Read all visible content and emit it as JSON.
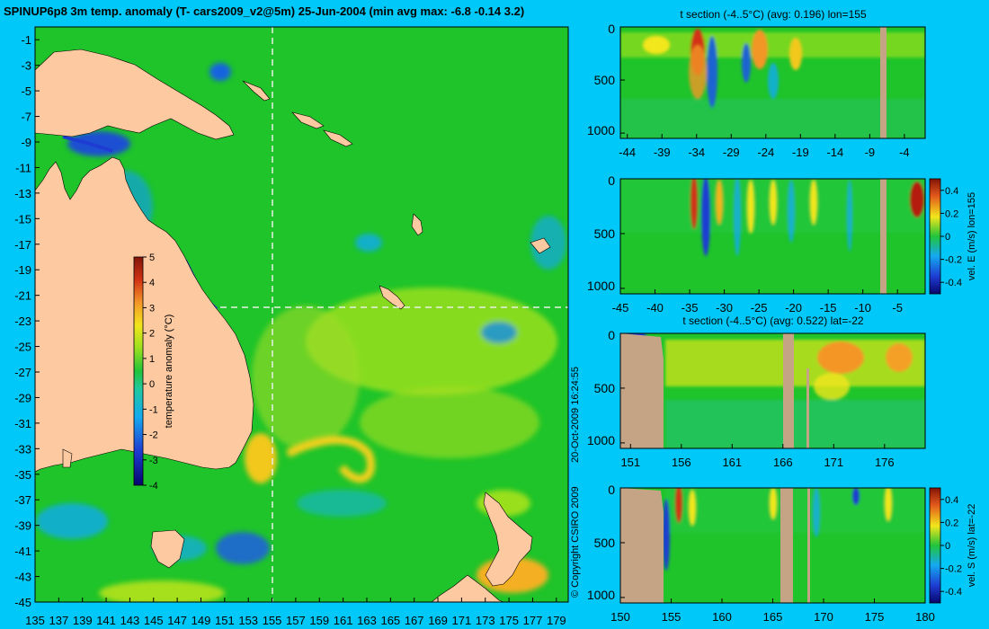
{
  "chart_data": [
    {
      "type": "heatmap",
      "id": "map",
      "title": "SPINUP6p8 3m temp. anomaly (T- cars2009_v2@5m) 25-Jun-2004 (min avg max: -6.8 -0.14 3.2)",
      "x_ticks": [
        "135",
        "137",
        "139",
        "141",
        "143",
        "145",
        "147",
        "149",
        "151",
        "153",
        "155",
        "157",
        "159",
        "161",
        "163",
        "165",
        "167",
        "169",
        "171",
        "173",
        "175",
        "177",
        "179"
      ],
      "xlim": [
        135,
        180
      ],
      "y_ticks": [
        "-1",
        "-3",
        "-5",
        "-7",
        "-9",
        "-11",
        "-13",
        "-15",
        "-17",
        "-19",
        "-21",
        "-23",
        "-25",
        "-27",
        "-29",
        "-31",
        "-33",
        "-35",
        "-37",
        "-39",
        "-41",
        "-43",
        "-45"
      ],
      "ylim": [
        -45,
        0
      ],
      "section_lon": 155,
      "section_lat": -22,
      "colorbar": {
        "label": "temperature anomaly (°C)",
        "ticks": [
          "5",
          "4",
          "3",
          "2",
          "1",
          "0",
          "-1",
          "-2",
          "-3",
          "-4"
        ],
        "range": [
          -4,
          5
        ]
      },
      "copyright": "© Copyright CSIRO 2009",
      "timestamp": "20-Oct-2009 16:24:55"
    },
    {
      "type": "heatmap",
      "id": "panel1",
      "title": "t section (-4..5°C) (avg: 0.196) lon=155",
      "x_ticks": [
        "-44",
        "-39",
        "-34",
        "-29",
        "-24",
        "-19",
        "-14",
        "-9",
        "-4"
      ],
      "xlim": [
        -45,
        -1
      ],
      "y_ticks": [
        "0",
        "500",
        "1000"
      ],
      "ylim": [
        0,
        1050
      ],
      "land": [
        [
          -6,
          -5
        ]
      ]
    },
    {
      "type": "heatmap",
      "id": "panel2",
      "title": "",
      "x_ticks": [
        "-45",
        "-40",
        "-35",
        "-30",
        "-25",
        "-20",
        "-15",
        "-10",
        "-5"
      ],
      "xlim": [
        -45,
        -1
      ],
      "y_ticks": [
        "0",
        "500",
        "1000"
      ],
      "ylim": [
        0,
        1050
      ],
      "land": [
        [
          -6,
          -5
        ]
      ],
      "colorbar": {
        "label": "vel. E (m/s) lon=155",
        "ticks": [
          "0.4",
          "0.2",
          "0",
          "-0.2",
          "-0.4"
        ],
        "range": [
          -0.5,
          0.5
        ]
      }
    },
    {
      "type": "heatmap",
      "id": "panel3",
      "title": "t section (-4..5°C) (avg: 0.522) lat=-22",
      "x_ticks": [
        "151",
        "156",
        "161",
        "166",
        "171",
        "176"
      ],
      "xlim": [
        150,
        180
      ],
      "y_ticks": [
        "0",
        "500",
        "1000"
      ],
      "ylim": [
        0,
        1050
      ],
      "land": [
        [
          150,
          154
        ],
        [
          166,
          167
        ],
        [
          167.7,
          168
        ]
      ]
    },
    {
      "type": "heatmap",
      "id": "panel4",
      "title": "",
      "x_ticks": [
        "150",
        "155",
        "160",
        "165",
        "170",
        "175",
        "180"
      ],
      "xlim": [
        150,
        180
      ],
      "y_ticks": [
        "0",
        "500",
        "1000"
      ],
      "ylim": [
        0,
        1050
      ],
      "land": [
        [
          150,
          154
        ],
        [
          166,
          167
        ],
        [
          168,
          168.5
        ]
      ],
      "colorbar": {
        "label": "vel. S (m/s) lat=-22",
        "ticks": [
          "0.4",
          "0.2",
          "0",
          "-0.2",
          "-0.4"
        ],
        "range": [
          -0.5,
          0.5
        ]
      }
    }
  ],
  "colors": {
    "background": "#00c8f8",
    "land": "#fdc9a1",
    "section_land": "#c4a484",
    "ocean": "#1fc42a"
  }
}
